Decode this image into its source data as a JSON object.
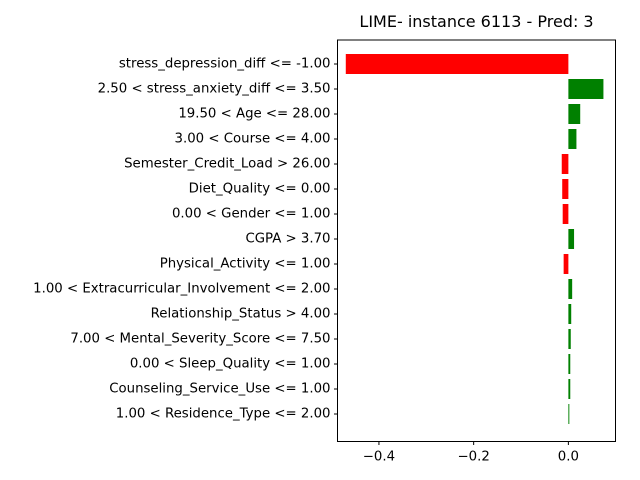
{
  "chart_data": {
    "type": "bar",
    "orientation": "horizontal",
    "title": "LIME- instance 6113 - Pred: 3",
    "xlabel": "",
    "ylabel": "",
    "xlim": [
      -0.4875,
      0.0995
    ],
    "x_ticks": [
      -0.4,
      -0.2,
      0.0
    ],
    "x_tick_labels": [
      "−0.4",
      "−0.2",
      "0.0"
    ],
    "grid": false,
    "legend": "none",
    "colors": {
      "positive": "#008000",
      "negative": "#ff0000"
    },
    "categories": [
      "stress_depression_diff <= -1.00",
      "2.50 < stress_anxiety_diff <= 3.50",
      "19.50 < Age <= 28.00",
      "3.00 < Course <= 4.00",
      "Semester_Credit_Load > 26.00",
      "Diet_Quality <= 0.00",
      "0.00 < Gender <= 1.00",
      "CGPA > 3.70",
      "Physical_Activity <= 1.00",
      "1.00 < Extracurricular_Involvement <= 2.00",
      "Relationship_Status > 4.00",
      "7.00 < Mental_Severity_Score <= 7.50",
      "0.00 < Sleep_Quality <= 1.00",
      "Counseling_Service_Use <= 1.00",
      "1.00 < Residence_Type <= 2.00"
    ],
    "values": [
      -0.47,
      0.074,
      0.025,
      0.017,
      -0.014,
      -0.013,
      -0.012,
      0.012,
      -0.01,
      0.008,
      0.006,
      0.005,
      0.004,
      0.004,
      0.002
    ]
  }
}
